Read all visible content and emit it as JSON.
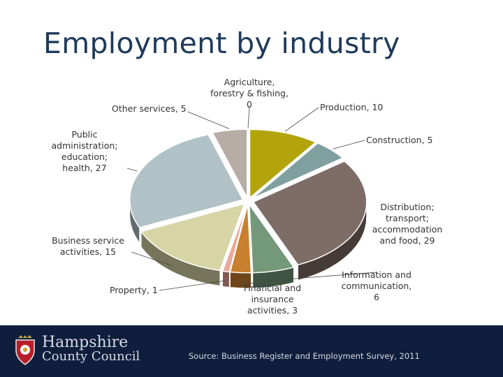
{
  "title": "Employment by industry",
  "chart_data": {
    "type": "pie",
    "categories": [
      "Agriculture, forestry & fishing",
      "Production",
      "Construction",
      "Distribution; transport; accommodation and food",
      "Information and communication",
      "Financial and insurance activities",
      "Property",
      "Business service activities",
      "Public administration; education; health",
      "Other services"
    ],
    "values": [
      0,
      10,
      5,
      29,
      6,
      3,
      1,
      15,
      27,
      5
    ],
    "labels": [
      "Agriculture,\nforestry & fishing,\n0",
      "Production, 10",
      "Construction, 5",
      "Distribution;\ntransport;\naccommodation\nand food, 29",
      "Information and\ncommunication,\n6",
      "Financial and\ninsurance\nactivities, 3",
      "Property, 1",
      "Business service\nactivities, 15",
      "Public\nadministration;\neducation;\nhealth, 27",
      "Other services, 5"
    ],
    "colors": [
      "#9aa44e",
      "#b3a40c",
      "#80a0a0",
      "#7d6d66",
      "#74987a",
      "#c8802e",
      "#e9a89a",
      "#d7d4a6",
      "#b1c2c6",
      "#b8aca6"
    ],
    "style": "3d-exploded-pie"
  },
  "footer": {
    "org_line1": "Hampshire",
    "org_line2": "County Council",
    "source": "Source: Business Register and Employment Survey, 2011"
  }
}
